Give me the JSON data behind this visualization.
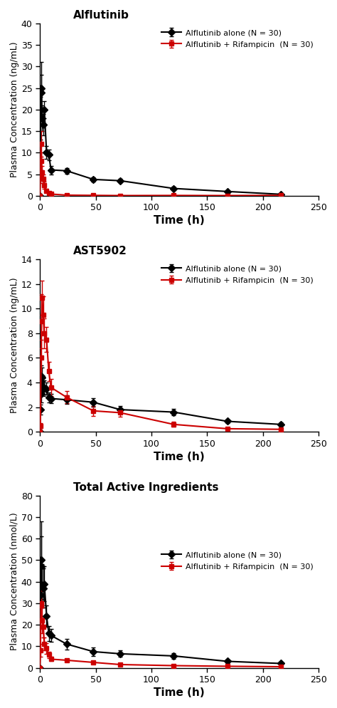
{
  "panel1": {
    "title": "Alflutinib",
    "ylabel": "Plasma Concentration (ng/mL)",
    "xlabel": "Time (h)",
    "ylim": [
      0,
      40
    ],
    "yticks": [
      0,
      5,
      10,
      15,
      20,
      25,
      30,
      35,
      40
    ],
    "xlim": [
      0,
      250
    ],
    "xticks": [
      0,
      50,
      100,
      150,
      200,
      250
    ],
    "black": {
      "x": [
        0,
        0.5,
        1,
        1.5,
        2,
        3,
        4,
        6,
        8,
        10,
        24,
        48,
        72,
        120,
        168,
        216
      ],
      "y": [
        0,
        18,
        25,
        24,
        18,
        16.5,
        20,
        10,
        9.5,
        6,
        5.8,
        3.8,
        3.5,
        1.7,
        1.0,
        0.35
      ],
      "yerr": [
        0,
        5,
        6,
        4,
        3,
        2.5,
        2,
        1.5,
        1.2,
        1.0,
        0.7,
        0.5,
        0.4,
        0.4,
        0.2,
        0.1
      ]
    },
    "red": {
      "x": [
        0,
        0.5,
        1,
        1.5,
        2,
        3,
        4,
        6,
        8,
        10,
        24,
        48,
        72,
        120,
        168,
        216
      ],
      "y": [
        0,
        5,
        12,
        8,
        5.5,
        4,
        2.5,
        1.2,
        0.7,
        0.4,
        0.15,
        0.1,
        0.05,
        0.08,
        0.05,
        0.1
      ],
      "yerr": [
        0,
        2,
        3,
        2,
        1.5,
        1,
        0.8,
        0.4,
        0.2,
        0.15,
        0.05,
        0.04,
        0.03,
        0.03,
        0.02,
        0.05
      ]
    }
  },
  "panel2": {
    "title": "AST5902",
    "ylabel": "Plasma Concentration (ng/mL)",
    "xlabel": "Time (h)",
    "ylim": [
      0,
      14
    ],
    "yticks": [
      0,
      2,
      4,
      6,
      8,
      10,
      12,
      14
    ],
    "xlim": [
      0,
      250
    ],
    "xticks": [
      0,
      50,
      100,
      150,
      200,
      250
    ],
    "black": {
      "x": [
        0,
        0.5,
        1,
        1.5,
        2,
        3,
        4,
        6,
        8,
        10,
        24,
        48,
        72,
        120,
        168,
        216
      ],
      "y": [
        0,
        1.8,
        3.1,
        4.5,
        4.4,
        3.5,
        3.6,
        3.5,
        2.8,
        2.7,
        2.6,
        2.4,
        1.8,
        1.6,
        0.85,
        0.6
      ],
      "yerr": [
        0,
        0.4,
        0.7,
        0.9,
        0.8,
        0.6,
        0.6,
        0.5,
        0.4,
        0.4,
        0.35,
        0.35,
        0.3,
        0.25,
        0.15,
        0.15
      ]
    },
    "red": {
      "x": [
        0,
        0.5,
        1,
        1.5,
        2,
        3,
        4,
        6,
        8,
        10,
        24,
        48,
        72,
        120,
        168,
        216
      ],
      "y": [
        0,
        0.5,
        6.0,
        9.0,
        10.9,
        9.5,
        8.0,
        7.5,
        4.9,
        3.6,
        2.8,
        1.7,
        1.55,
        0.6,
        0.25,
        0.2
      ],
      "yerr": [
        0,
        0.2,
        1.5,
        2.2,
        1.4,
        1.5,
        1.2,
        1.0,
        0.8,
        0.7,
        0.5,
        0.4,
        0.3,
        0.2,
        0.1,
        0.1
      ]
    }
  },
  "panel3": {
    "title": "Total Active Ingredients",
    "ylabel": "Plasma Concentration (nmol/L)",
    "xlabel": "Time (h)",
    "ylim": [
      0,
      80
    ],
    "yticks": [
      0,
      10,
      20,
      30,
      40,
      50,
      60,
      70,
      80
    ],
    "xlim": [
      0,
      250
    ],
    "xticks": [
      0,
      50,
      100,
      150,
      200,
      250
    ],
    "black": {
      "x": [
        0,
        0.5,
        1,
        1.5,
        2,
        3,
        4,
        6,
        8,
        10,
        24,
        48,
        72,
        120,
        168,
        216
      ],
      "y": [
        0,
        34,
        50,
        47,
        38,
        37,
        39,
        24,
        16,
        15,
        11,
        7.5,
        6.5,
        5.5,
        3.0,
        2.0
      ],
      "yerr": [
        0,
        12,
        18,
        14,
        10,
        9,
        8,
        5,
        3.5,
        3,
        2.5,
        2.0,
        1.5,
        1.2,
        0.8,
        0.6
      ]
    },
    "red": {
      "x": [
        0,
        0.5,
        1,
        1.5,
        2,
        3,
        4,
        6,
        8,
        10,
        24,
        48,
        72,
        120,
        168,
        216
      ],
      "y": [
        0,
        8,
        30,
        29,
        22,
        19,
        11,
        9,
        6,
        4,
        3.5,
        2.5,
        1.5,
        1.0,
        0.7,
        0.5
      ],
      "yerr": [
        0,
        3,
        8,
        7,
        6,
        5,
        3,
        2.5,
        1.5,
        1.0,
        0.8,
        0.6,
        0.4,
        0.3,
        0.2,
        0.2
      ]
    }
  },
  "legend": {
    "black_label": "Alflutinib alone (N = 30)",
    "red_label": "Alflutinib + Rifampicin  (N = 30)"
  },
  "colors": {
    "black": "#000000",
    "red": "#cc0000"
  },
  "title_fontsize": 11,
  "label_fontsize": 9,
  "xlabel_fontsize": 11,
  "tick_fontsize": 9
}
